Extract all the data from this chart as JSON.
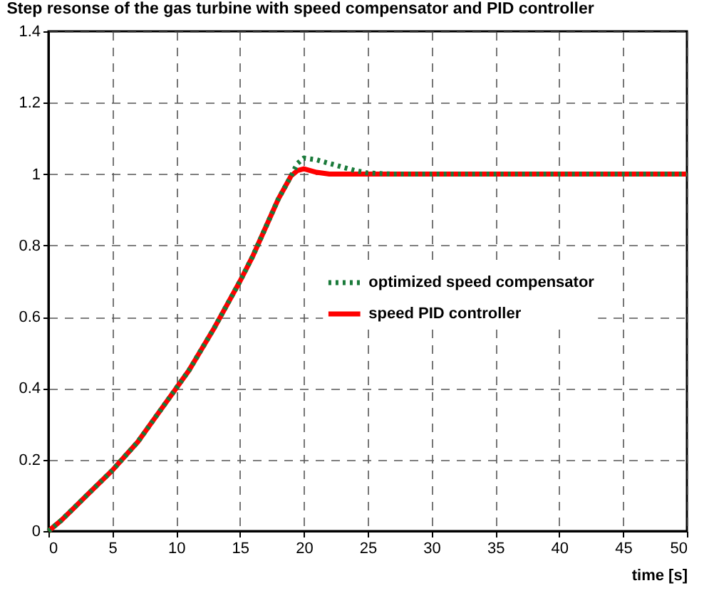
{
  "chart_data": {
    "type": "line",
    "title": "Step resonse of the gas turbine with speed compensator and PID controller",
    "xlabel": "time [s]",
    "xlim": [
      0,
      50
    ],
    "xticks": [
      0,
      5,
      10,
      15,
      20,
      25,
      30,
      35,
      40,
      45,
      50
    ],
    "ylim": [
      0,
      1.4
    ],
    "yticks": [
      0,
      {
        "value": 0.2,
        "label": "0.2"
      },
      {
        "value": 0.4,
        "label": "0.4"
      },
      {
        "value": 0.6,
        "label": "0.6"
      },
      {
        "value": 0.8,
        "label": "0.8"
      },
      1,
      {
        "value": 1.2,
        "label": "1.2"
      },
      {
        "value": 1.4,
        "label": "1.4"
      }
    ],
    "grid": true,
    "legend": "right",
    "series": [
      {
        "name": "optimized speed compensator",
        "color": "#1a7a3a",
        "line_style": "dotted",
        "x": [
          0,
          1,
          2,
          3,
          4,
          5,
          6,
          7,
          8,
          9,
          10,
          11,
          12,
          13,
          14,
          15,
          16,
          17,
          18,
          19,
          19.5,
          20,
          21,
          22,
          23,
          24,
          25,
          27,
          50
        ],
        "values": [
          0,
          0.03,
          0.065,
          0.1,
          0.135,
          0.17,
          0.21,
          0.25,
          0.3,
          0.35,
          0.4,
          0.45,
          0.51,
          0.57,
          0.635,
          0.7,
          0.77,
          0.85,
          0.93,
          0.995,
          1.03,
          1.045,
          1.04,
          1.03,
          1.02,
          1.01,
          1.003,
          1.0,
          1.0
        ]
      },
      {
        "name": "speed PID controller",
        "color": "#ff0000",
        "line_style": "solid",
        "x": [
          0,
          1,
          2,
          3,
          4,
          5,
          6,
          7,
          8,
          9,
          10,
          11,
          12,
          13,
          14,
          15,
          16,
          17,
          18,
          19,
          19.5,
          20,
          21,
          22,
          50
        ],
        "values": [
          0,
          0.03,
          0.065,
          0.1,
          0.135,
          0.17,
          0.21,
          0.25,
          0.3,
          0.35,
          0.4,
          0.45,
          0.51,
          0.57,
          0.635,
          0.7,
          0.77,
          0.85,
          0.93,
          0.995,
          1.01,
          1.015,
          1.005,
          1.0,
          1.0
        ]
      }
    ]
  }
}
